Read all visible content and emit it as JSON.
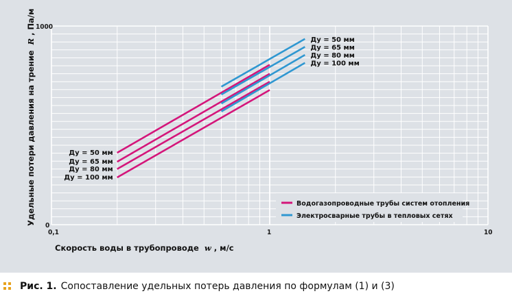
{
  "chart_data": {
    "type": "line",
    "xlabel_prefix": "Скорость воды в трубопроводе",
    "xlabel_var": "w",
    "xlabel_suffix": ", м/с",
    "ylabel_prefix": "Удельные потери давления на трение",
    "ylabel_var": "R",
    "ylabel_suffix": ", Па/м",
    "x_scale": "log",
    "xlim": [
      0.1,
      10
    ],
    "ylim": [
      0,
      1000
    ],
    "x_ticks": [
      "0,1",
      "1",
      "10"
    ],
    "y_ticks": [
      "0",
      "1000"
    ],
    "grid": true,
    "legend_position": "bottom-right",
    "legend": [
      {
        "label": "Водогазопроводные трубы систем отопления",
        "color": "#d4157a"
      },
      {
        "label": "Электросварные трубы в тепловых сетях",
        "color": "#2f97d1"
      }
    ],
    "series": [
      {
        "group": 0,
        "label": "Ду = 50 мм",
        "x": [
          0.2,
          1.0
        ],
        "y": [
          362,
          805
        ]
      },
      {
        "group": 0,
        "label": "Ду = 65 мм",
        "x": [
          0.2,
          1.0
        ],
        "y": [
          317,
          760
        ]
      },
      {
        "group": 0,
        "label": "Ду = 80 мм",
        "x": [
          0.2,
          1.0
        ],
        "y": [
          280,
          720
        ]
      },
      {
        "group": 0,
        "label": "Ду = 100 мм",
        "x": [
          0.2,
          1.0
        ],
        "y": [
          238,
          678
        ]
      },
      {
        "group": 1,
        "label": "Ду = 50 мм",
        "x": [
          0.6,
          1.45
        ],
        "y": [
          695,
          935
        ]
      },
      {
        "group": 1,
        "label": "Ду = 65 мм",
        "x": [
          0.6,
          1.45
        ],
        "y": [
          655,
          895
        ]
      },
      {
        "group": 1,
        "label": "Ду = 80 мм",
        "x": [
          0.6,
          1.45
        ],
        "y": [
          610,
          855
        ]
      },
      {
        "group": 1,
        "label": "Ду = 100 мм",
        "x": [
          0.6,
          1.45
        ],
        "y": [
          570,
          815
        ]
      }
    ]
  },
  "caption": {
    "label": "Рис. 1.",
    "text": "Сопоставление удельных потерь давления по формулам (1) и (3)",
    "marker_color": "#e8a21c"
  }
}
